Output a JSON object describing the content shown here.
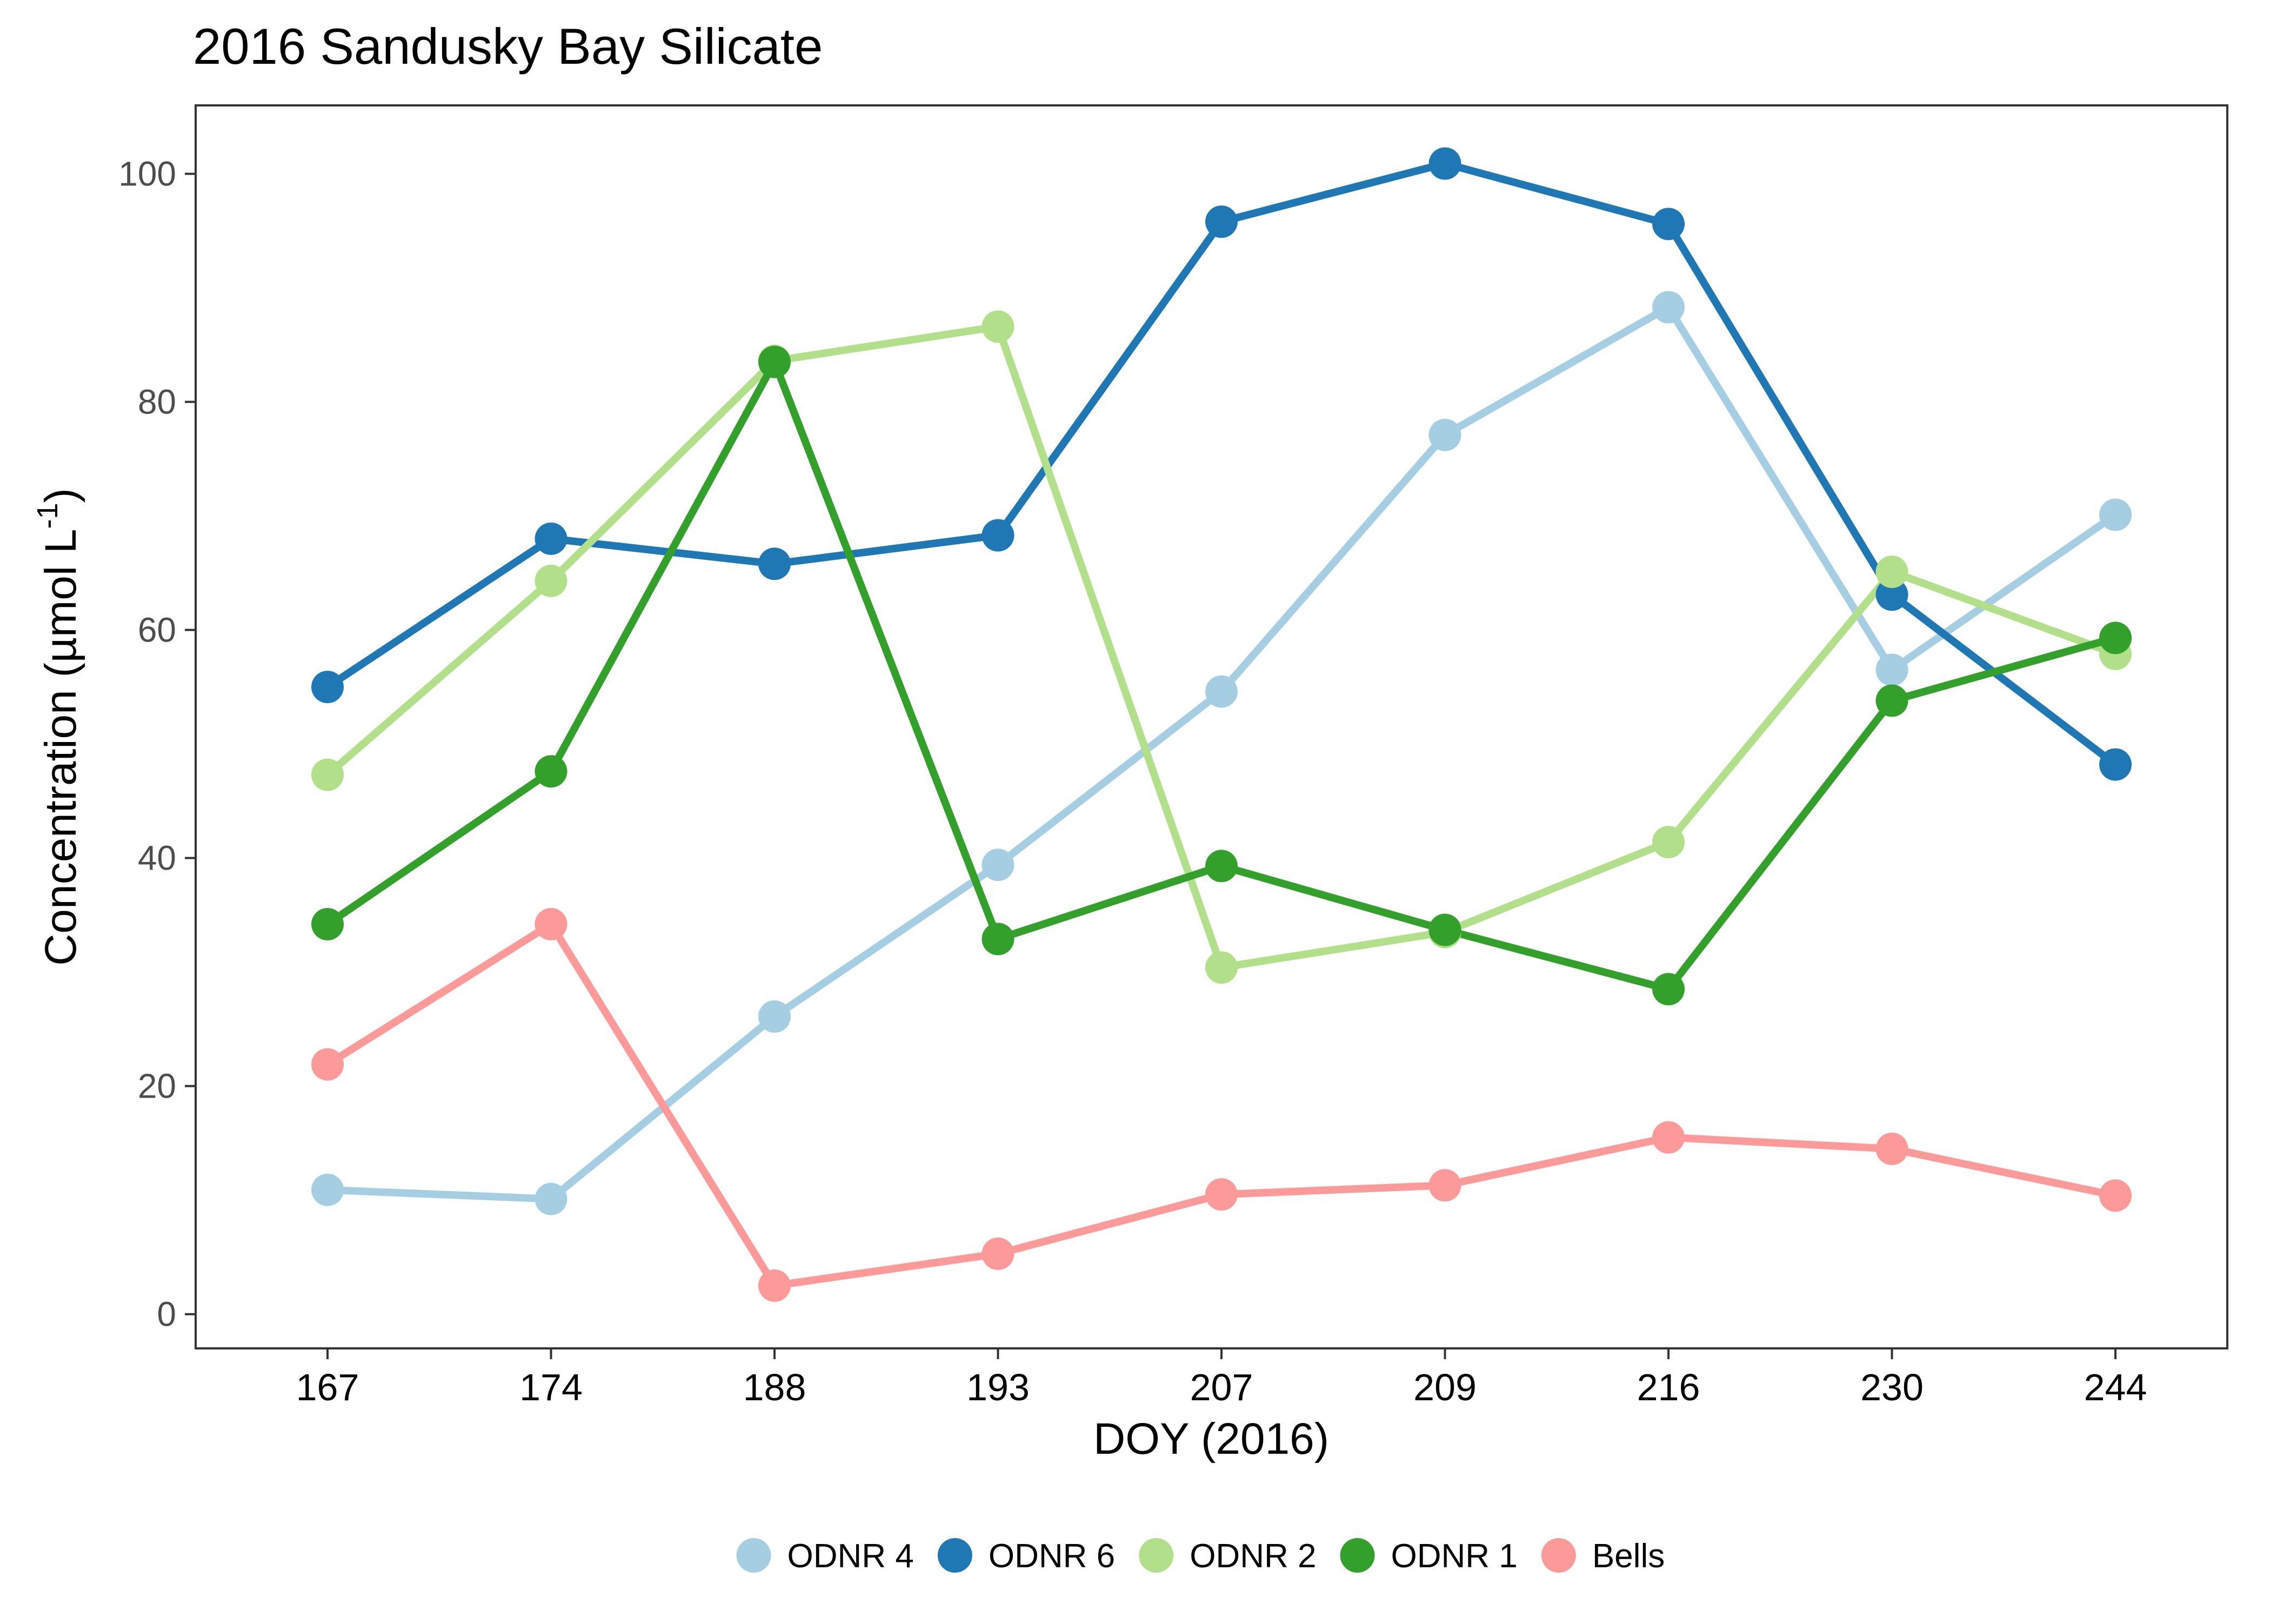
{
  "chart_data": {
    "type": "line",
    "title": "2016 Sandusky Bay Silicate",
    "xlabel": "DOY (2016)",
    "ylabel": "Concentration (µmol L",
    "ylabel_superscript": "-1",
    "ylabel_close": ")",
    "categories": [
      "167",
      "174",
      "188",
      "193",
      "207",
      "209",
      "216",
      "230",
      "244"
    ],
    "ylim": [
      -3,
      106
    ],
    "yticks": [
      0,
      20,
      40,
      60,
      80,
      100
    ],
    "grid": false,
    "legend_position": "bottom",
    "series": [
      {
        "name": "ODNR 4",
        "color": "#a6cee3",
        "values": [
          10.9,
          10.1,
          26.1,
          39.4,
          54.6,
          77.1,
          88.3,
          56.5,
          70.1
        ]
      },
      {
        "name": "ODNR 6",
        "color": "#1f78b4",
        "values": [
          55.0,
          68.0,
          65.8,
          68.3,
          95.8,
          100.9,
          95.6,
          63.1,
          48.2
        ]
      },
      {
        "name": "ODNR 2",
        "color": "#b2df8a",
        "values": [
          47.3,
          64.3,
          83.6,
          86.6,
          30.4,
          33.5,
          41.4,
          65.1,
          57.9
        ]
      },
      {
        "name": "ODNR 1",
        "color": "#33a02c",
        "values": [
          34.2,
          47.6,
          83.5,
          32.9,
          39.3,
          33.7,
          28.5,
          53.8,
          59.3
        ]
      },
      {
        "name": "Bells",
        "color": "#fb9a99",
        "values": [
          21.9,
          34.2,
          2.5,
          5.3,
          10.5,
          11.3,
          15.5,
          14.5,
          10.4
        ]
      }
    ]
  }
}
